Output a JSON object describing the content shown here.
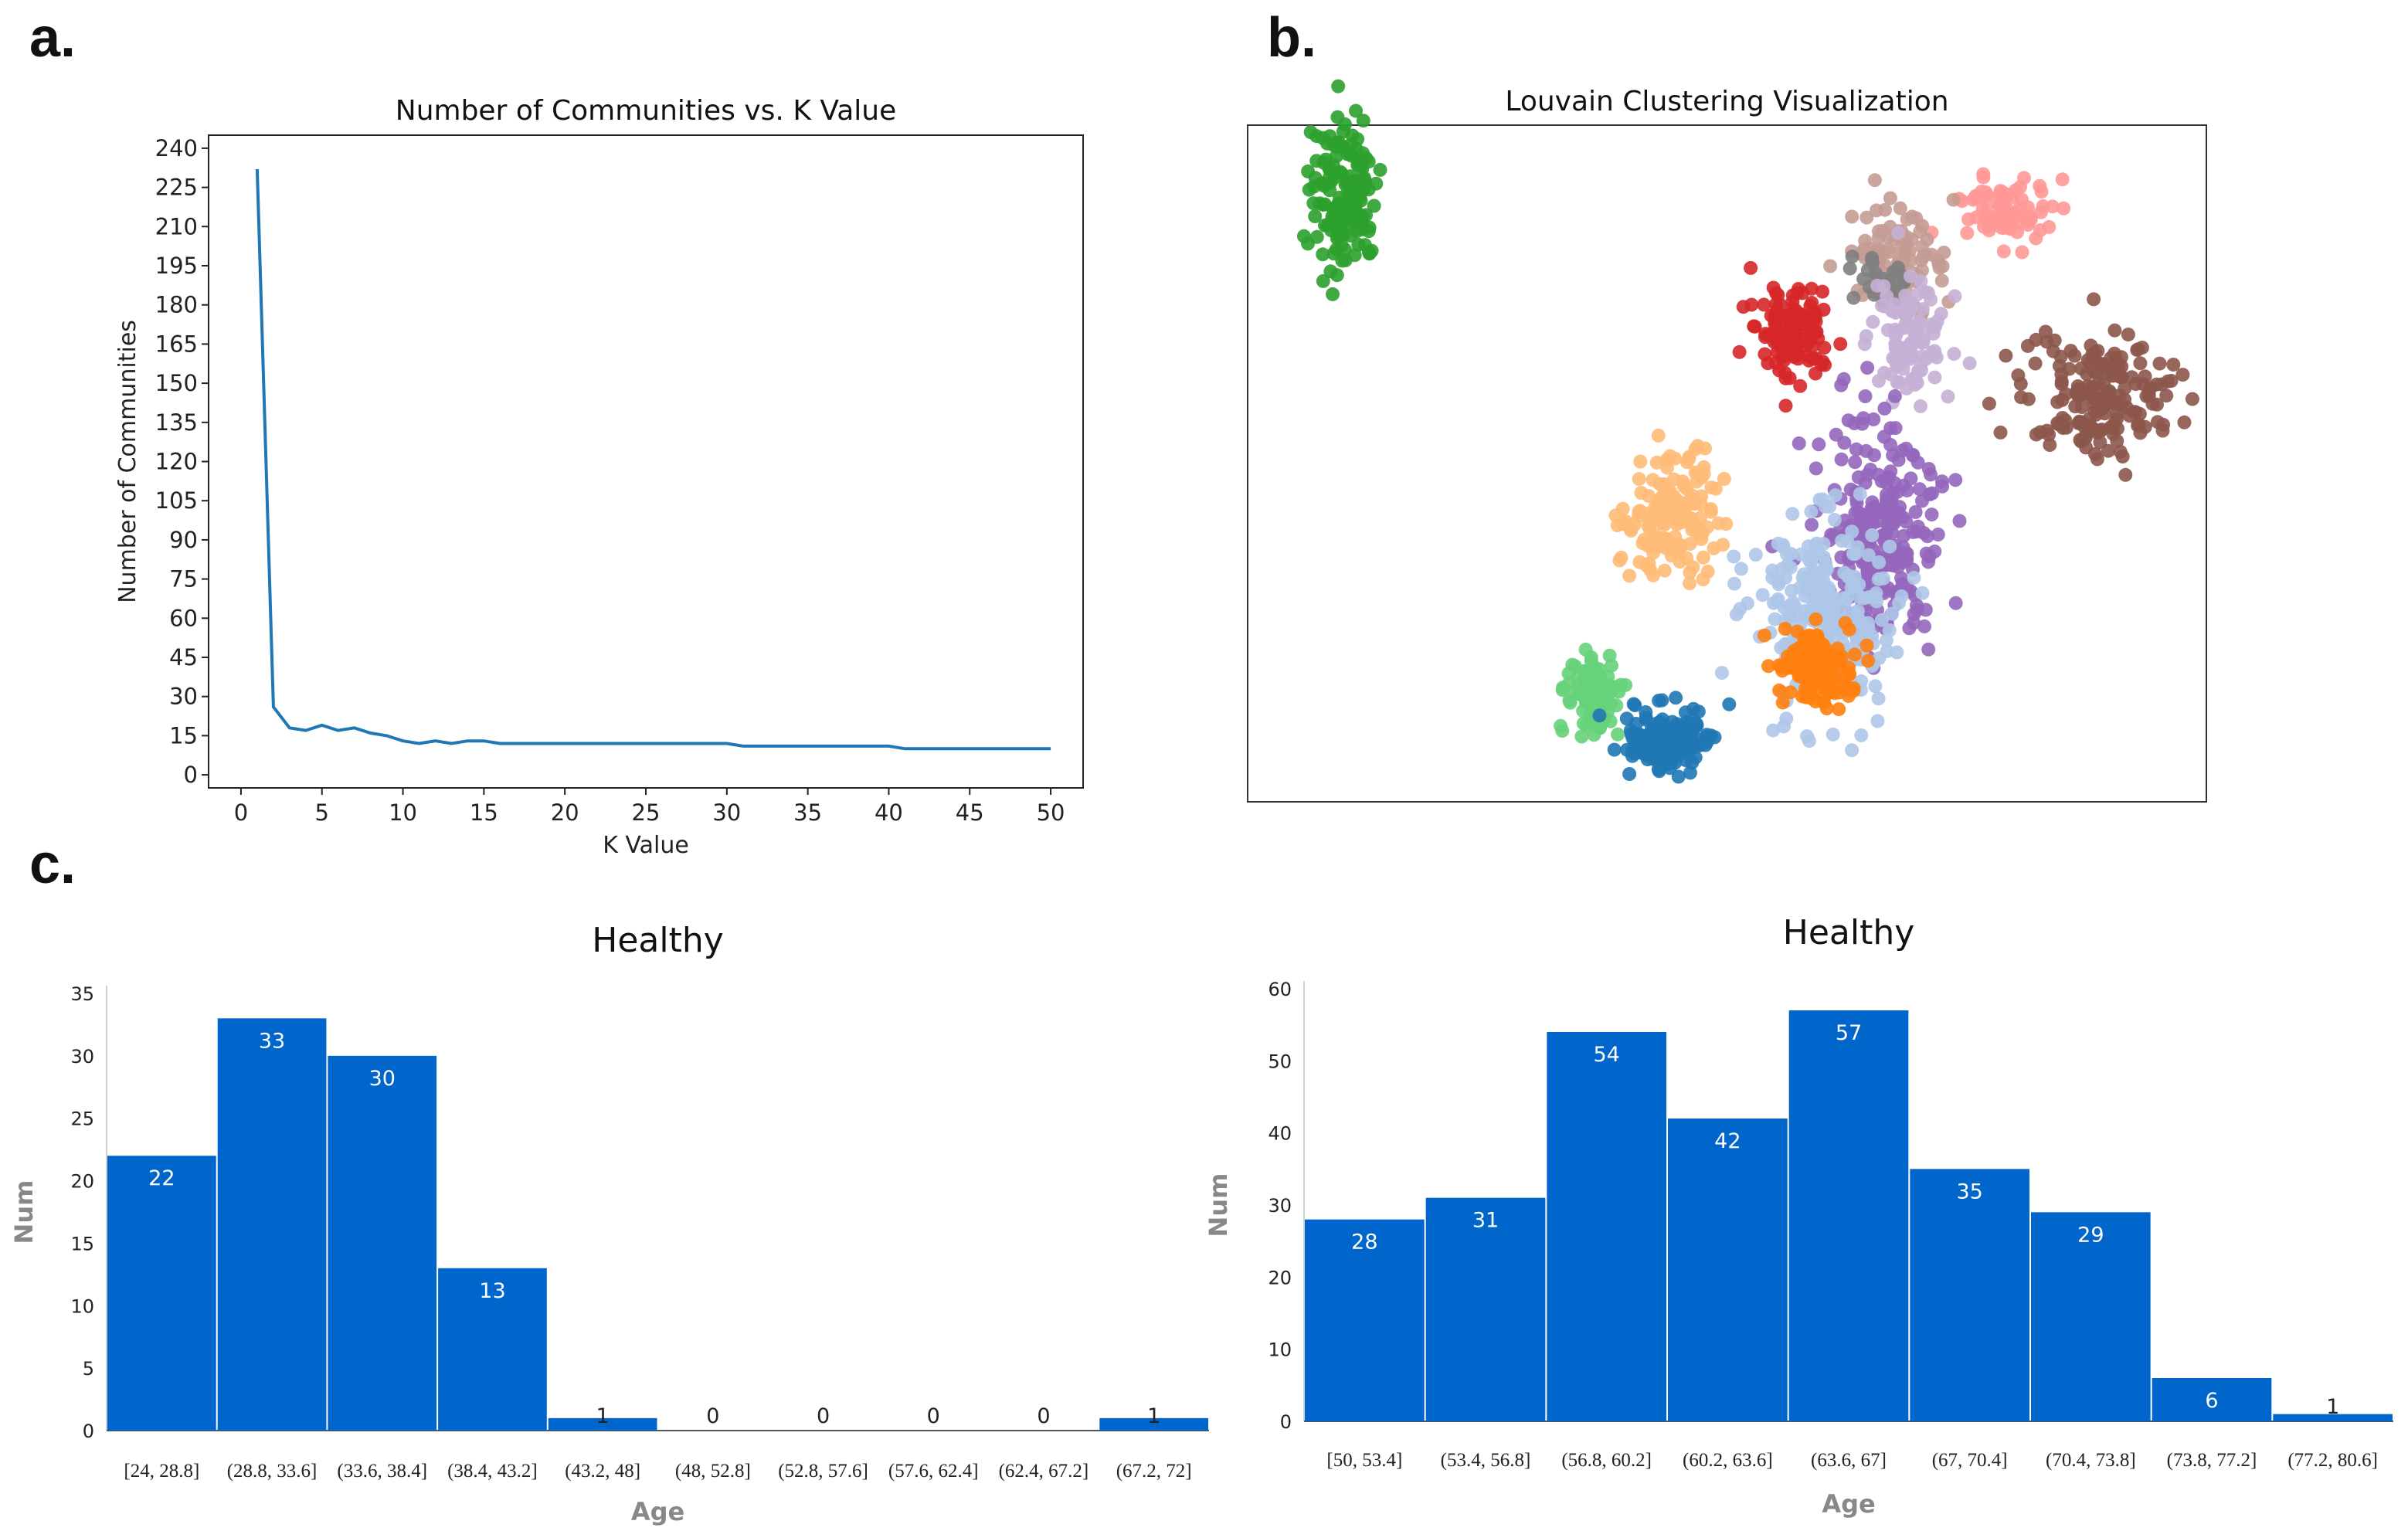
{
  "panels": {
    "a": "a.",
    "b": "b.",
    "c": "c."
  },
  "chart_data": [
    {
      "type": "line",
      "title": "Number of Communities vs. K Value",
      "xlabel": "K Value",
      "ylabel": "Number of Communities",
      "xlim": [
        -2,
        52
      ],
      "ylim": [
        -5,
        245
      ],
      "xticks": [
        0,
        5,
        10,
        15,
        20,
        25,
        30,
        35,
        40,
        45,
        50
      ],
      "yticks": [
        0,
        15,
        30,
        45,
        60,
        75,
        90,
        105,
        120,
        135,
        150,
        165,
        180,
        195,
        210,
        225,
        240
      ],
      "color": "#1f77b4",
      "series": [
        {
          "x": [
            1,
            2,
            3,
            4,
            5,
            6,
            7,
            8,
            9,
            10,
            11,
            12,
            13,
            14,
            15,
            16,
            17,
            18,
            19,
            20,
            21,
            22,
            23,
            24,
            25,
            26,
            27,
            28,
            29,
            30,
            31,
            32,
            33,
            34,
            35,
            36,
            37,
            38,
            39,
            40,
            41,
            42,
            43,
            44,
            45,
            46,
            47,
            48,
            49,
            50
          ],
          "values": [
            232,
            26,
            18,
            17,
            19,
            17,
            18,
            16,
            15,
            13,
            12,
            13,
            12,
            13,
            13,
            12,
            12,
            12,
            12,
            12,
            12,
            12,
            12,
            12,
            12,
            12,
            12,
            12,
            12,
            12,
            11,
            11,
            11,
            11,
            11,
            11,
            11,
            11,
            11,
            11,
            10,
            10,
            10,
            10,
            10,
            10,
            10,
            10,
            10,
            10
          ]
        }
      ]
    },
    {
      "type": "scatter",
      "title": "Louvain Clustering Visualization",
      "clusters": [
        {
          "color": "#2ca02c",
          "cx": 0.1,
          "cy": 0.1,
          "sx": 0.018,
          "sy": 0.06,
          "n": 140
        },
        {
          "color": "#ff9896",
          "cx": 0.79,
          "cy": 0.13,
          "sx": 0.022,
          "sy": 0.025,
          "n": 90
        },
        {
          "color": "#c49c94",
          "cx": 0.68,
          "cy": 0.2,
          "sx": 0.025,
          "sy": 0.035,
          "n": 100
        },
        {
          "color": "#7f7f7f",
          "cx": 0.66,
          "cy": 0.23,
          "sx": 0.02,
          "sy": 0.03,
          "n": 25
        },
        {
          "color": "#d62728",
          "cx": 0.57,
          "cy": 0.3,
          "sx": 0.02,
          "sy": 0.035,
          "n": 120
        },
        {
          "color": "#c5b0d5",
          "cx": 0.69,
          "cy": 0.32,
          "sx": 0.02,
          "sy": 0.04,
          "n": 100
        },
        {
          "color": "#8c564b",
          "cx": 0.89,
          "cy": 0.4,
          "sx": 0.04,
          "sy": 0.05,
          "n": 180
        },
        {
          "color": "#ffbb78",
          "cx": 0.44,
          "cy": 0.57,
          "sx": 0.025,
          "sy": 0.05,
          "n": 150
        },
        {
          "color": "#9467bd",
          "cx": 0.66,
          "cy": 0.61,
          "sx": 0.03,
          "sy": 0.08,
          "n": 260
        },
        {
          "color": "#aec7e8",
          "cx": 0.6,
          "cy": 0.72,
          "sx": 0.035,
          "sy": 0.07,
          "n": 260
        },
        {
          "color": "#ff7f0e",
          "cx": 0.59,
          "cy": 0.8,
          "sx": 0.02,
          "sy": 0.03,
          "n": 120
        },
        {
          "color": "#66d17a",
          "cx": 0.36,
          "cy": 0.84,
          "sx": 0.013,
          "sy": 0.03,
          "n": 90
        },
        {
          "color": "#1f77b4",
          "cx": 0.44,
          "cy": 0.91,
          "sx": 0.022,
          "sy": 0.025,
          "n": 160
        }
      ]
    },
    {
      "type": "bar",
      "title": "Healthy",
      "xlabel": "Age",
      "ylabel": "Num",
      "ylim": [
        0,
        35
      ],
      "yticks": [
        0,
        5,
        10,
        15,
        20,
        25,
        30,
        35
      ],
      "color": "#0066cc",
      "categories": [
        "[24, 28.8]",
        "(28.8, 33.6]",
        "(33.6, 38.4]",
        "(38.4, 43.2]",
        "(43.2, 48]",
        "(48, 52.8]",
        "(52.8, 57.6]",
        "(57.6, 62.4]",
        "(62.4, 67.2]",
        "(67.2, 72]"
      ],
      "values": [
        22,
        33,
        30,
        13,
        1,
        0,
        0,
        0,
        0,
        1
      ]
    },
    {
      "type": "bar",
      "title": "Healthy",
      "xlabel": "Age",
      "ylabel": "Num",
      "ylim": [
        0,
        60
      ],
      "yticks": [
        0,
        10,
        20,
        30,
        40,
        50,
        60
      ],
      "color": "#0066cc",
      "categories": [
        "[50, 53.4]",
        "(53.4, 56.8]",
        "(56.8, 60.2]",
        "(60.2, 63.6]",
        "(63.6, 67]",
        "(67, 70.4]",
        "(70.4, 73.8]",
        "(73.8, 77.2]",
        "(77.2, 80.6]"
      ],
      "values": [
        28,
        31,
        54,
        42,
        57,
        35,
        29,
        6,
        1
      ]
    }
  ]
}
